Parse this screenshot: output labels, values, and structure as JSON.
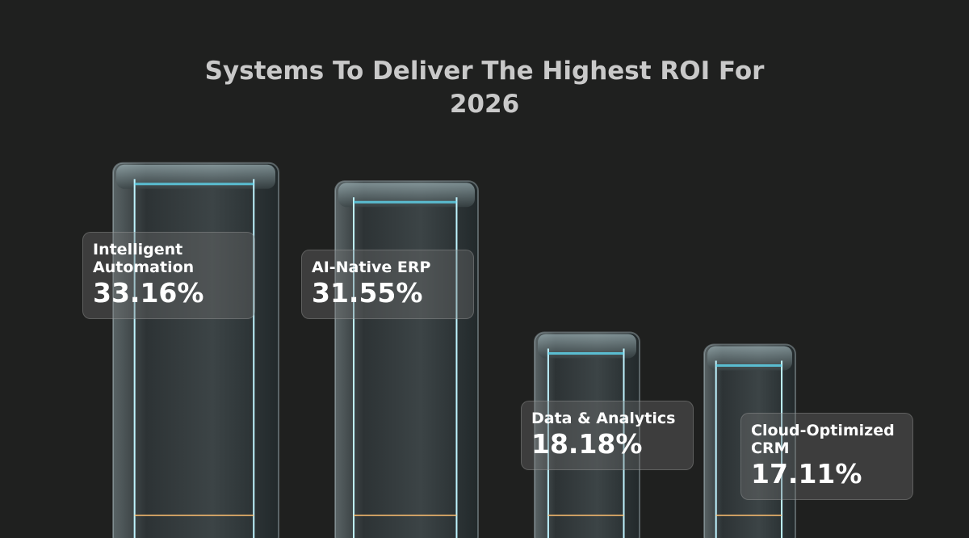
{
  "chart_data": {
    "type": "bar",
    "title": "Systems To Deliver The Highest ROI For 2026",
    "categories": [
      "Intelligent Automation",
      "AI-Native ERP",
      "Data & Analytics",
      "Cloud-Optimized CRM"
    ],
    "values": [
      33.16,
      31.55,
      18.18,
      17.11
    ],
    "value_labels": [
      "33.16%",
      "31.55%",
      "18.18%",
      "17.11%"
    ],
    "color": "#5fd8f0"
  }
}
